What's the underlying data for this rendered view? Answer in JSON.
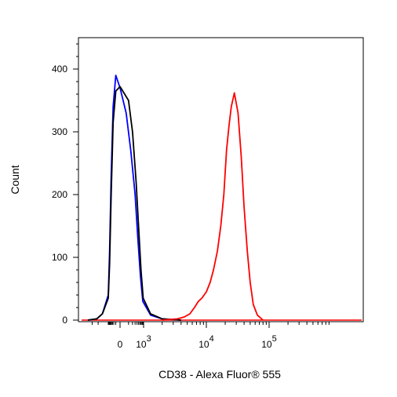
{
  "chart_data": {
    "type": "line",
    "title": "",
    "xlabel": "CD38 - Alexa Fluor® 555",
    "ylabel": "Count",
    "ylim": [
      0,
      450
    ],
    "yticks": [
      0,
      100,
      200,
      300,
      400
    ],
    "x_scale": "biexponential",
    "xticks": [
      {
        "value": 0,
        "base": "0",
        "exp": ""
      },
      {
        "value": 1000,
        "base": "10",
        "exp": "3"
      },
      {
        "value": 10000,
        "base": "10",
        "exp": "4"
      },
      {
        "value": 100000,
        "base": "10",
        "exp": "5"
      }
    ],
    "grid": false,
    "series": [
      {
        "color": "#0000ff",
        "x": [
          -4000,
          -2200,
          -1500,
          -1000,
          -700,
          -450,
          -250,
          -100,
          0,
          60,
          150,
          300,
          450,
          650,
          900,
          1300,
          2000,
          4000
        ],
        "y": [
          0,
          2,
          10,
          40,
          110,
          230,
          340,
          390,
          370,
          330,
          270,
          200,
          130,
          70,
          30,
          8,
          2,
          0
        ]
      },
      {
        "color": "#000000",
        "x": [
          -4000,
          -2200,
          -1500,
          -1000,
          -700,
          -450,
          -250,
          -100,
          0,
          100,
          200,
          350,
          500,
          700,
          950,
          1300,
          2000,
          4000
        ],
        "y": [
          0,
          2,
          10,
          35,
          90,
          200,
          315,
          365,
          372,
          350,
          300,
          220,
          150,
          80,
          35,
          10,
          2,
          0
        ]
      },
      {
        "color": "#ff0000",
        "x": [
          2000,
          3500,
          4500,
          5500,
          6500,
          7500,
          8500,
          10000,
          11500,
          13000,
          15000,
          17000,
          19000,
          21000,
          23000,
          25000,
          28000,
          32000,
          36000,
          40000,
          45000,
          50000,
          56000,
          65000,
          80000
        ],
        "y": [
          0,
          2,
          5,
          10,
          20,
          30,
          35,
          45,
          60,
          80,
          110,
          150,
          200,
          270,
          310,
          340,
          362,
          330,
          260,
          180,
          110,
          60,
          25,
          8,
          0
        ]
      }
    ]
  }
}
